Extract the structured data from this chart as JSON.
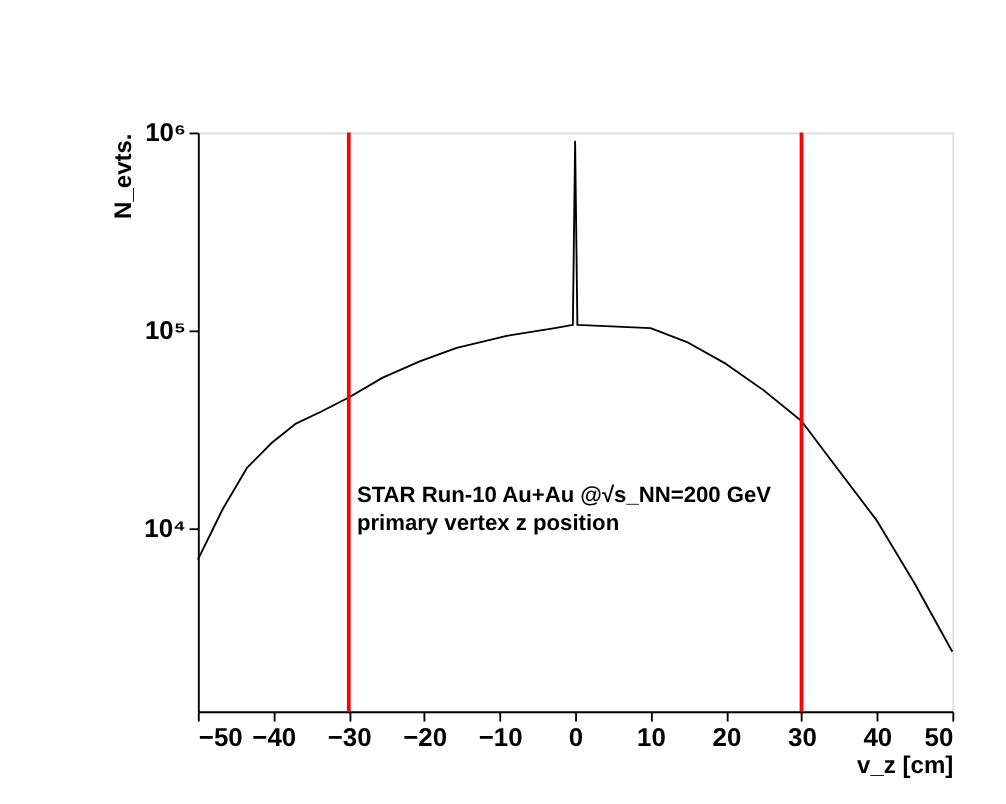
{
  "chart_data": {
    "type": "line",
    "xlabel": "v_z [cm]",
    "ylabel": "N_evts.",
    "log": true,
    "xlim": [
      -50,
      50
    ],
    "xticks": [
      -50,
      -40,
      -30,
      -20,
      -10,
      0,
      10,
      20,
      30,
      40,
      50
    ],
    "ylim": [
      1200,
      1000000
    ],
    "yticks": [
      {
        "value": 10000,
        "label": "10⁴"
      },
      {
        "value": 100000,
        "label": "10⁵"
      },
      {
        "value": 1000000,
        "label": "10⁶"
      }
    ],
    "grid": false,
    "series": [
      {
        "color": "#000000",
        "x": [
          -50,
          -46.7,
          -43.5,
          -40.2,
          -37,
          -33.7,
          -30,
          -25.5,
          -20.6,
          -15.7,
          -9.2,
          -2.7,
          -0.3,
          0,
          0.3,
          10,
          15,
          20,
          25,
          30,
          35,
          40,
          45,
          50
        ],
        "values": [
          7000,
          12600,
          20300,
          27200,
          34000,
          39000,
          46000,
          58000,
          70000,
          82000,
          94000,
          103000,
          107000,
          900000,
          107000,
          103000,
          87000,
          68000,
          50000,
          35000,
          19600,
          11000,
          5300,
          2400
        ]
      }
    ],
    "ref_lines": [
      {
        "axis": "x",
        "value": -30,
        "color": "#ff0000"
      },
      {
        "axis": "x",
        "value": 30,
        "color": "#ff0000"
      }
    ],
    "annotations": [
      "STAR Run-10 Au+Au @√s_NN=200 GeV",
      "primary vertex z position"
    ]
  }
}
